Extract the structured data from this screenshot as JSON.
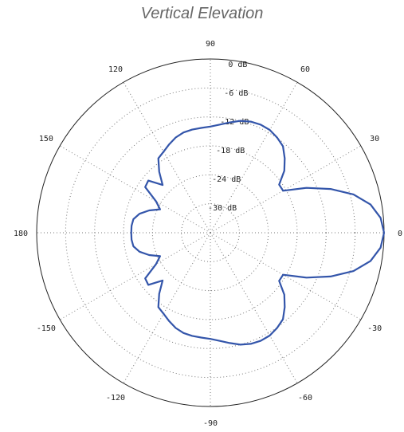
{
  "title": "Vertical Elevation",
  "chart_data": {
    "type": "polar-line",
    "title": "Vertical Elevation",
    "radial_unit": "dB",
    "radial_range": [
      -36,
      0
    ],
    "radial_ticks": [
      "0 dB",
      "-6 dB",
      "-12 dB",
      "-18 dB",
      "-24 dB",
      "-30 dB"
    ],
    "radial_tick_values": [
      0,
      -6,
      -12,
      -18,
      -24,
      -30
    ],
    "angle_ticks": [
      "0",
      "30",
      "60",
      "90",
      "120",
      "150",
      "180",
      "-150",
      "-120",
      "-90",
      "-60",
      "-30"
    ],
    "angle_tick_values": [
      0,
      30,
      60,
      90,
      120,
      150,
      180,
      -150,
      -120,
      -90,
      -60,
      -30
    ],
    "grid": true,
    "series": [
      {
        "color": "#3355aa",
        "theta": [
          0,
          5,
          10,
          15,
          20,
          25,
          30,
          35,
          40,
          45,
          50,
          55,
          60,
          65,
          70,
          75,
          80,
          85,
          90,
          95,
          100,
          105,
          110,
          115,
          120,
          125,
          130,
          135,
          140,
          145,
          150,
          155,
          160,
          165,
          170,
          175,
          180,
          185,
          190,
          195,
          200,
          205,
          210,
          215,
          220,
          225,
          230,
          235,
          240,
          245,
          250,
          255,
          260,
          265,
          270,
          275,
          280,
          285,
          290,
          295,
          300,
          305,
          310,
          315,
          320,
          325,
          330,
          335,
          340,
          345,
          350,
          355
        ],
        "r": [
          0,
          -0.6,
          -2.3,
          -5.3,
          -9.5,
          -14.0,
          -18.6,
          -18.6,
          -16.0,
          -14.2,
          -12.6,
          -11.9,
          -11.4,
          -11.3,
          -11.5,
          -12.0,
          -12.8,
          -13.5,
          -14.0,
          -14.2,
          -14.3,
          -14.5,
          -15.0,
          -15.8,
          -16.6,
          -17.2,
          -19.5,
          -22.0,
          -19.2,
          -19.5,
          -23.0,
          -24.5,
          -22.5,
          -20.8,
          -19.8,
          -19.6,
          -19.6,
          -19.6,
          -19.8,
          -20.8,
          -22.5,
          -24.5,
          -23.0,
          -19.5,
          -19.2,
          -22.0,
          -19.5,
          -17.2,
          -16.6,
          -15.8,
          -15.0,
          -14.5,
          -14.3,
          -14.2,
          -14.0,
          -13.5,
          -12.8,
          -12.0,
          -11.5,
          -11.3,
          -11.4,
          -11.9,
          -12.6,
          -14.2,
          -16.0,
          -18.6,
          -18.6,
          -14.0,
          -9.5,
          -5.3,
          -2.3,
          -0.6
        ]
      }
    ]
  }
}
